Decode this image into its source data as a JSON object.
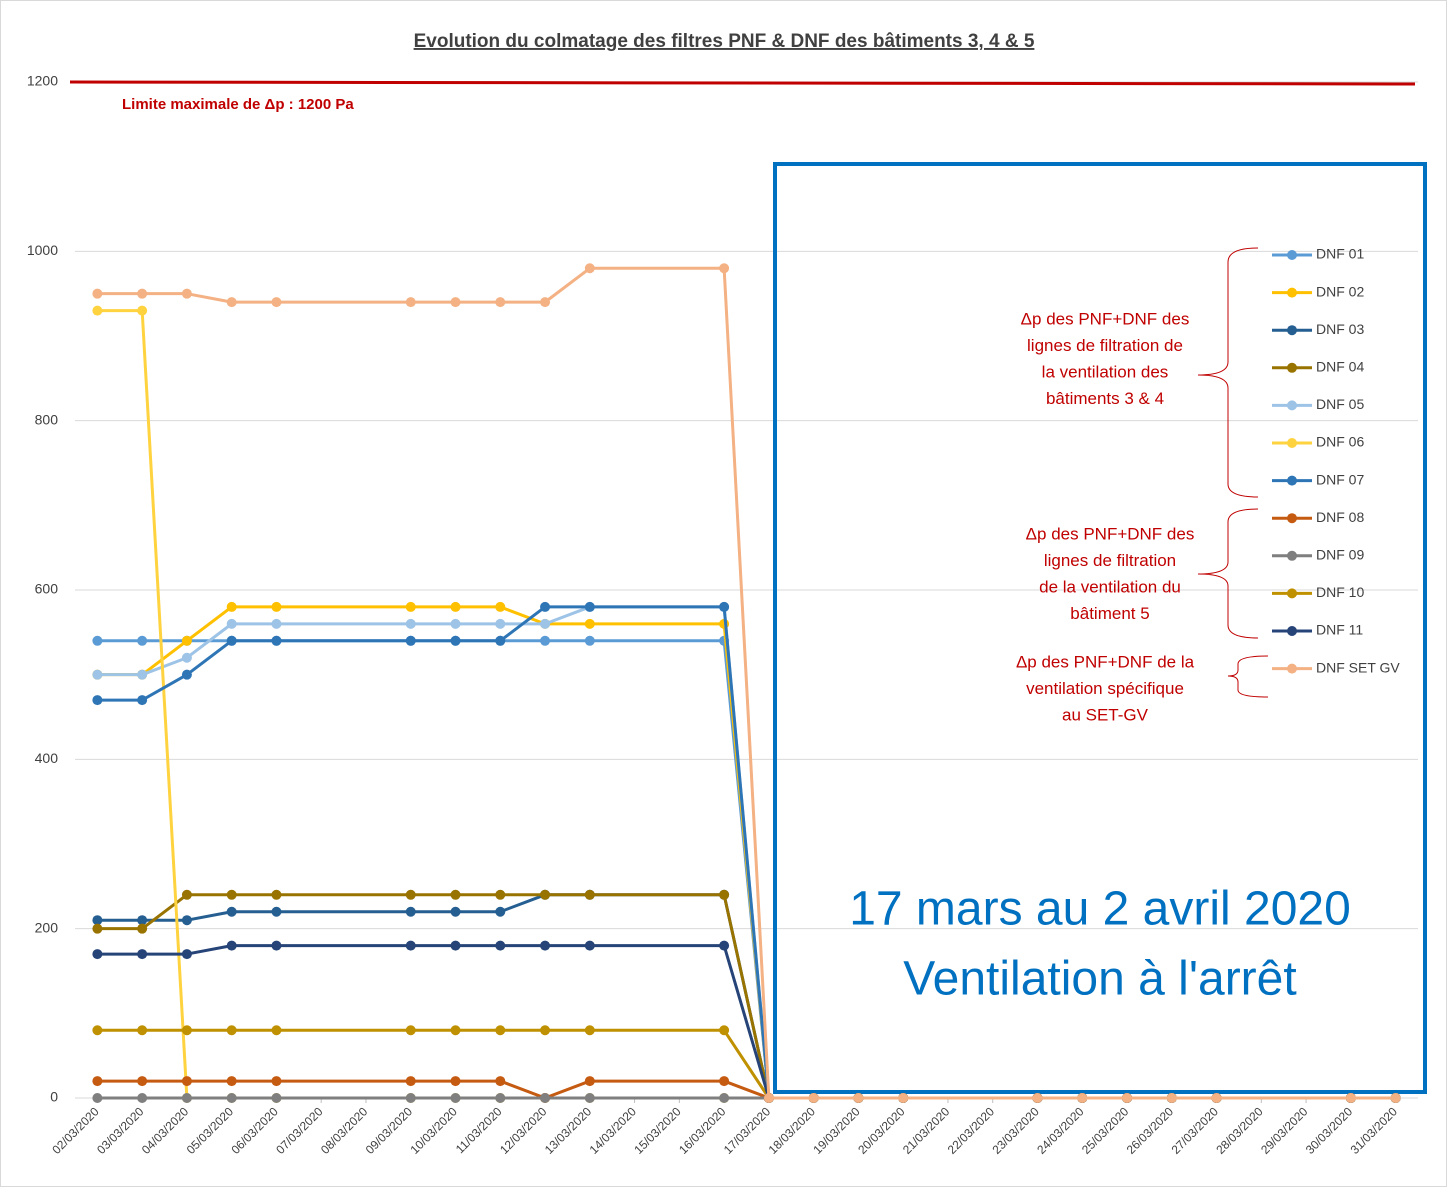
{
  "chart_data": {
    "type": "line",
    "title": "Evolution du colmatage des filtres PNF & DNF des bâtiments 3, 4 & 5",
    "categories": [
      "02/03/2020",
      "03/03/2020",
      "04/03/2020",
      "05/03/2020",
      "06/03/2020",
      "07/03/2020",
      "08/03/2020",
      "09/03/2020",
      "10/03/2020",
      "11/03/2020",
      "12/03/2020",
      "13/03/2020",
      "14/03/2020",
      "15/03/2020",
      "16/03/2020",
      "17/03/2020",
      "18/03/2020",
      "19/03/2020",
      "20/03/2020",
      "21/03/2020",
      "22/03/2020",
      "23/03/2020",
      "24/03/2020",
      "25/03/2020",
      "26/03/2020",
      "27/03/2020",
      "28/03/2020",
      "29/03/2020",
      "30/03/2020",
      "31/03/2020"
    ],
    "x": [
      "02/03/2020",
      "03/03/2020",
      "04/03/2020",
      "05/03/2020",
      "06/03/2020",
      "09/03/2020",
      "10/03/2020",
      "11/03/2020",
      "12/03/2020",
      "13/03/2020",
      "16/03/2020",
      "17/03/2020",
      "18/03/2020",
      "19/03/2020",
      "20/03/2020",
      "23/03/2020",
      "24/03/2020",
      "25/03/2020",
      "26/03/2020",
      "27/03/2020",
      "30/03/2020",
      "31/03/2020"
    ],
    "ylim": [
      0,
      1200
    ],
    "yticks": [
      0,
      200,
      400,
      600,
      800,
      1000,
      1200
    ],
    "grid": true,
    "series": [
      {
        "name": "DNF 01",
        "color": "#5b9bd5",
        "values": [
          540,
          540,
          540,
          540,
          540,
          540,
          540,
          540,
          540,
          540,
          540,
          0,
          0,
          0,
          0,
          0,
          0,
          0,
          0,
          0,
          0,
          0
        ]
      },
      {
        "name": "DNF 02",
        "color": "#ffc000",
        "values": [
          500,
          500,
          540,
          580,
          580,
          580,
          580,
          580,
          560,
          560,
          560,
          0,
          0,
          0,
          0,
          0,
          0,
          0,
          0,
          0,
          0,
          0
        ]
      },
      {
        "name": "DNF 03",
        "color": "#255e91",
        "values": [
          210,
          210,
          210,
          220,
          220,
          220,
          220,
          220,
          240,
          240,
          240,
          0,
          0,
          0,
          0,
          0,
          0,
          0,
          0,
          0,
          0,
          0
        ]
      },
      {
        "name": "DNF 04",
        "color": "#997300",
        "values": [
          200,
          200,
          240,
          240,
          240,
          240,
          240,
          240,
          240,
          240,
          240,
          0,
          0,
          0,
          0,
          0,
          0,
          0,
          0,
          0,
          0,
          0
        ]
      },
      {
        "name": "DNF 05",
        "color": "#9dc3e6",
        "values": [
          500,
          500,
          520,
          560,
          560,
          560,
          560,
          560,
          560,
          580,
          580,
          0,
          0,
          0,
          0,
          0,
          0,
          0,
          0,
          0,
          0,
          0
        ]
      },
      {
        "name": "DNF 06",
        "color": "#ffd33f",
        "values": [
          930,
          930,
          0,
          0,
          0,
          0,
          0,
          0,
          0,
          0,
          0,
          0,
          0,
          0,
          0,
          0,
          0,
          0,
          0,
          0,
          0,
          0
        ]
      },
      {
        "name": "DNF 07",
        "color": "#2e75b6",
        "values": [
          470,
          470,
          500,
          540,
          540,
          540,
          540,
          540,
          580,
          580,
          580,
          0,
          0,
          0,
          0,
          0,
          0,
          0,
          0,
          0,
          0,
          0
        ]
      },
      {
        "name": "DNF 08",
        "color": "#c55a11",
        "values": [
          20,
          20,
          20,
          20,
          20,
          20,
          20,
          20,
          0,
          20,
          20,
          0,
          0,
          0,
          0,
          0,
          0,
          0,
          0,
          0,
          0,
          0
        ]
      },
      {
        "name": "DNF 09",
        "color": "#7f7f7f",
        "values": [
          0,
          0,
          0,
          0,
          0,
          0,
          0,
          0,
          0,
          0,
          0,
          0,
          0,
          0,
          0,
          0,
          0,
          0,
          0,
          0,
          0,
          0
        ]
      },
      {
        "name": "DNF 10",
        "color": "#bf9000",
        "values": [
          80,
          80,
          80,
          80,
          80,
          80,
          80,
          80,
          80,
          80,
          80,
          0,
          0,
          0,
          0,
          0,
          0,
          0,
          0,
          0,
          0,
          0
        ]
      },
      {
        "name": "DNF 11",
        "color": "#264478",
        "values": [
          170,
          170,
          170,
          180,
          180,
          180,
          180,
          180,
          180,
          180,
          180,
          0,
          0,
          0,
          0,
          0,
          0,
          0,
          0,
          0,
          0,
          0
        ]
      },
      {
        "name": "DNF SET GV",
        "color": "#f4b183",
        "values": [
          950,
          950,
          950,
          940,
          940,
          940,
          940,
          940,
          940,
          980,
          980,
          0,
          0,
          0,
          0,
          0,
          0,
          0,
          0,
          0,
          0,
          0
        ]
      }
    ],
    "limit": {
      "value": 1200,
      "label": "Limite maximale de Δp : 1200 Pa",
      "color": "#c00000"
    },
    "box_text": [
      "17 mars au 2 avril 2020",
      "Ventilation à l'arrêt"
    ],
    "annotations": [
      {
        "lines": [
          "Δp des PNF+DNF des",
          "lignes de filtration de",
          "la ventilation des",
          "bâtiments 3 & 4"
        ]
      },
      {
        "lines": [
          "Δp des PNF+DNF des",
          "lignes de filtration",
          "de la ventilation du",
          "bâtiment 5"
        ]
      },
      {
        "lines": [
          "Δp des PNF+DNF de la",
          "ventilation spécifique",
          "au SET-GV"
        ]
      }
    ]
  }
}
